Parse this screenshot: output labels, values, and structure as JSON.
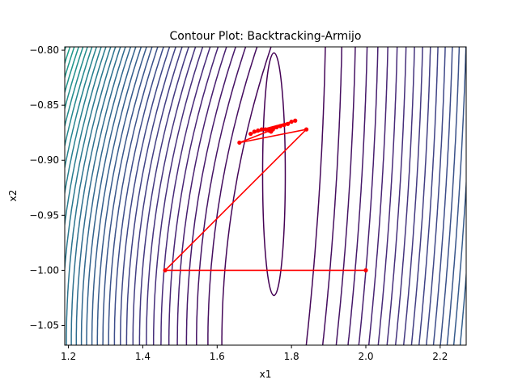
{
  "chart_data": {
    "type": "contour",
    "title": "Contour Plot: Backtracking-Armijo",
    "xlabel": "x1",
    "ylabel": "x2",
    "xlim": [
      1.19,
      2.27
    ],
    "ylim": [
      -1.068,
      -0.797
    ],
    "xticks": [
      {
        "value": 1.2,
        "label": "1.2"
      },
      {
        "value": 1.4,
        "label": "1.4"
      },
      {
        "value": 1.6,
        "label": "1.6"
      },
      {
        "value": 1.8,
        "label": "1.8"
      },
      {
        "value": 2.0,
        "label": "2.0"
      },
      {
        "value": 2.2,
        "label": "2.2"
      }
    ],
    "yticks": [
      {
        "value": -0.8,
        "label": "−0.80"
      },
      {
        "value": -0.85,
        "label": "−0.85"
      },
      {
        "value": -0.9,
        "label": "−0.90"
      },
      {
        "value": -0.95,
        "label": "−0.95"
      },
      {
        "value": -1.0,
        "label": "−1.00"
      },
      {
        "value": -1.05,
        "label": "−1.05"
      }
    ],
    "colormap": "viridis",
    "grid": false,
    "minimum": {
      "x": 1.755,
      "y": -0.92
    },
    "path_color": "#ff0000",
    "path": [
      {
        "x": 2.0,
        "y": -1.0
      },
      {
        "x": 1.46,
        "y": -1.0
      },
      {
        "x": 1.84,
        "y": -0.872
      },
      {
        "x": 1.66,
        "y": -0.884
      },
      {
        "x": 1.81,
        "y": -0.864
      },
      {
        "x": 1.69,
        "y": -0.876
      },
      {
        "x": 1.8,
        "y": -0.865
      },
      {
        "x": 1.7,
        "y": -0.874
      },
      {
        "x": 1.79,
        "y": -0.867
      },
      {
        "x": 1.71,
        "y": -0.873
      },
      {
        "x": 1.78,
        "y": -0.868
      },
      {
        "x": 1.72,
        "y": -0.872
      },
      {
        "x": 1.77,
        "y": -0.869
      },
      {
        "x": 1.73,
        "y": -0.872
      },
      {
        "x": 1.76,
        "y": -0.87
      },
      {
        "x": 1.74,
        "y": -0.873
      },
      {
        "x": 1.75,
        "y": -0.872
      },
      {
        "x": 1.745,
        "y": -0.874
      }
    ]
  }
}
